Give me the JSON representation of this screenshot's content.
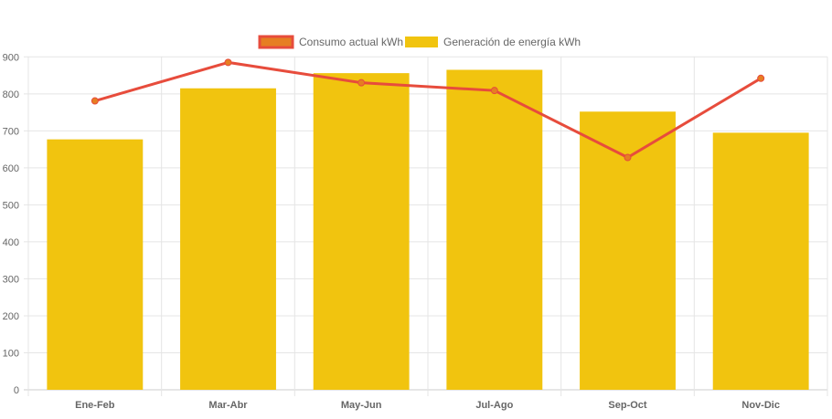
{
  "chart_data": {
    "type": "bar",
    "title": "",
    "xlabel": "",
    "ylabel": "",
    "ylim": [
      0,
      900
    ],
    "yticks": [
      0,
      100,
      200,
      300,
      400,
      500,
      600,
      700,
      800,
      900
    ],
    "grid": true,
    "legend_position": "top",
    "categories": [
      "Ene-Feb",
      "Mar-Abr",
      "May-Jun",
      "Jul-Ago",
      "Sep-Oct",
      "Nov-Dic"
    ],
    "series": [
      {
        "name": "Consumo actual kWh",
        "type": "line",
        "color": "#e74c3c",
        "point_color": "#e67e22",
        "values": [
          781,
          885,
          830,
          809,
          628,
          842
        ]
      },
      {
        "name": "Generación de energía kWh",
        "type": "bar",
        "color": "#f1c40f",
        "values": [
          677,
          815,
          856,
          865,
          752,
          695
        ]
      }
    ]
  }
}
